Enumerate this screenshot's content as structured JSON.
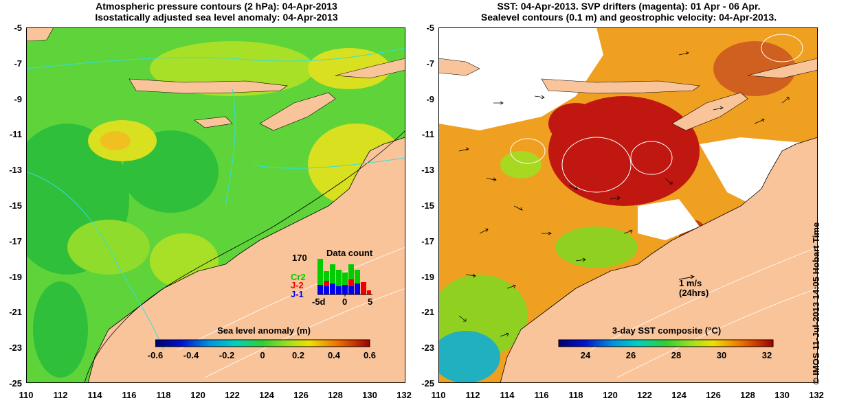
{
  "left_panel": {
    "title_line1": "Atmospheric pressure contours (2 hPa): 04-Apr-2013",
    "title_line2": "Isostatically adjusted sea level anomaly: 04-Apr-2013",
    "colorbar": {
      "title": "Sea level anomaly (m)",
      "ticks": [
        "-0.6",
        "-0.4",
        "-0.2",
        "0",
        "0.2",
        "0.4",
        "0.6"
      ],
      "range": [
        -0.6,
        0.6
      ]
    },
    "data_count": {
      "title": "Data count",
      "max_label": "170",
      "series": [
        {
          "name": "Cr2",
          "color": "#00cc00"
        },
        {
          "name": "J-2",
          "color": "#ee0000"
        },
        {
          "name": "J-1",
          "color": "#0000ee"
        }
      ],
      "x_ticks": [
        "-5d",
        "0",
        "5"
      ]
    }
  },
  "right_panel": {
    "title_line1": "SST: 04-Apr-2013. SVP drifters (magenta): 01 Apr - 06 Apr.",
    "title_line2": "Sealevel contours (0.1 m) and geostrophic velocity: 04-Apr-2013.",
    "colorbar": {
      "title": "3-day SST composite (°C)",
      "ticks": [
        "24",
        "26",
        "28",
        "30",
        "32"
      ],
      "range": [
        22.6,
        32
      ]
    },
    "velocity_scale": {
      "line1": "1 m/s",
      "line2": "(24hrs)"
    }
  },
  "axes": {
    "lat_ticks": [
      "-5",
      "-7",
      "-9",
      "-11",
      "-13",
      "-15",
      "-17",
      "-19",
      "-21",
      "-23",
      "-25"
    ],
    "lon_ticks": [
      "110",
      "112",
      "114",
      "116",
      "118",
      "120",
      "122",
      "124",
      "126",
      "128",
      "130",
      "132"
    ],
    "lat_range": [
      -25,
      -5
    ],
    "lon_range": [
      110,
      132
    ]
  },
  "copyright": "© IMOS 11-Jul-2013 14:05 Hobart Time",
  "colors": {
    "land": "#f9c49a",
    "sla_green": "#3fcf2a",
    "sst_orange": "#f0a020",
    "sst_red": "#c01810"
  }
}
